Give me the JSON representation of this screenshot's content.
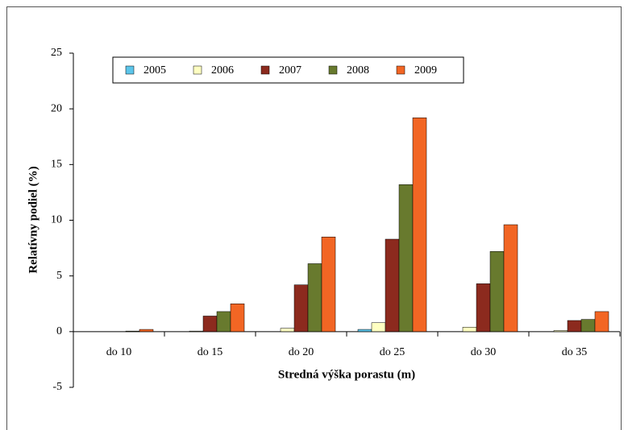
{
  "chart_data": {
    "type": "bar",
    "xlabel": "Stredná výška porastu (m)",
    "ylabel": "Relatívny podiel (%)",
    "categories": [
      "do 10",
      "do 15",
      "do 20",
      "do 25",
      "do 30",
      "do 35"
    ],
    "series": [
      {
        "name": "2005",
        "color": "#5cc5ea",
        "values": [
          0,
          0,
          0,
          0.2,
          0,
          0
        ]
      },
      {
        "name": "2006",
        "color": "#ffffc2",
        "values": [
          0,
          0.05,
          0.3,
          0.8,
          0.4,
          0.1
        ]
      },
      {
        "name": "2007",
        "color": "#8c2a1e",
        "values": [
          0,
          1.4,
          4.2,
          8.3,
          4.3,
          1.0
        ]
      },
      {
        "name": "2008",
        "color": "#687a2e",
        "values": [
          0.05,
          1.8,
          6.1,
          13.2,
          7.2,
          1.1
        ]
      },
      {
        "name": "2009",
        "color": "#f26624",
        "values": [
          0.2,
          2.5,
          8.5,
          19.2,
          9.6,
          1.8
        ]
      }
    ],
    "ylim": [
      -5,
      25
    ],
    "yticks": [
      -5,
      0,
      5,
      10,
      15,
      20,
      25
    ],
    "legend": "top-left"
  }
}
